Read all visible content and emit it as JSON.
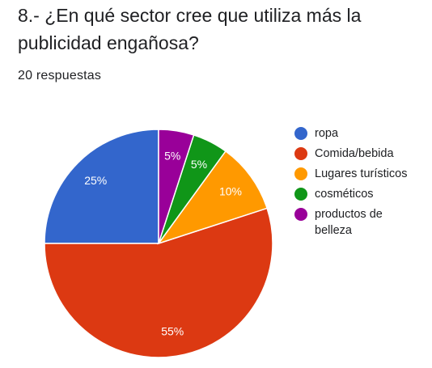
{
  "question": {
    "title": "8.- ¿En qué sector cree que utiliza más la publicidad engañosa?",
    "responses": "20 respuestas"
  },
  "chart_data": {
    "type": "pie",
    "slices": [
      {
        "label": "ropa",
        "value": 25,
        "pct_label": "25%",
        "color": "#3366cc"
      },
      {
        "label": "Comida/bebida",
        "value": 55,
        "pct_label": "55%",
        "color": "#dc3912"
      },
      {
        "label": "Lugares turísticos",
        "value": 10,
        "pct_label": "10%",
        "color": "#ff9900"
      },
      {
        "label": "cosméticos",
        "value": 5,
        "pct_label": "5%",
        "color": "#109618"
      },
      {
        "label": "productos de belleza",
        "value": 5,
        "pct_label": "5%",
        "color": "#990099"
      }
    ],
    "legend_position": "right"
  }
}
